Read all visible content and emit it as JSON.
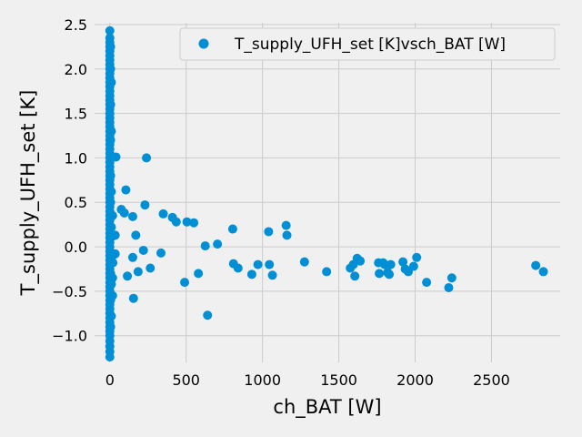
{
  "chart_data": {
    "type": "scatter",
    "title": "",
    "xlabel": "ch_BAT [W]",
    "ylabel": "T_supply_UFH_set [K]",
    "xlim": [
      -100,
      2950
    ],
    "ylim": [
      -1.3,
      2.52
    ],
    "xticks": [
      0,
      500,
      1000,
      1500,
      2000,
      2500
    ],
    "yticks": [
      -1.0,
      -0.5,
      0.0,
      0.5,
      1.0,
      1.5,
      2.0,
      2.5
    ],
    "xtick_labels": [
      "0",
      "500",
      "1000",
      "1500",
      "2000",
      "2500"
    ],
    "ytick_labels": [
      "−1.0",
      "−0.5",
      "0.0",
      "0.5",
      "1.0",
      "1.5",
      "2.0",
      "2.5"
    ],
    "grid": true,
    "legend_position": "top-right",
    "series": [
      {
        "name": "T_supply_UFH_set [K]vsch_BAT [W]",
        "color": "#008fd5",
        "points": [
          [
            0,
            -1.24
          ],
          [
            0,
            -1.18
          ],
          [
            0,
            -1.12
          ],
          [
            0,
            -1.06
          ],
          [
            0,
            -1.0
          ],
          [
            0,
            -0.95
          ],
          [
            0,
            -0.9
          ],
          [
            0,
            -0.85
          ],
          [
            0,
            -0.8
          ],
          [
            0,
            -0.75
          ],
          [
            0,
            -0.7
          ],
          [
            0,
            -0.65
          ],
          [
            0,
            -0.6
          ],
          [
            0,
            -0.55
          ],
          [
            0,
            -0.5
          ],
          [
            0,
            -0.45
          ],
          [
            0,
            -0.4
          ],
          [
            0,
            -0.35
          ],
          [
            0,
            -0.3
          ],
          [
            0,
            -0.25
          ],
          [
            0,
            -0.2
          ],
          [
            0,
            -0.15
          ],
          [
            0,
            -0.1
          ],
          [
            0,
            -0.05
          ],
          [
            0,
            0.0
          ],
          [
            0,
            0.05
          ],
          [
            0,
            0.1
          ],
          [
            0,
            0.15
          ],
          [
            0,
            0.2
          ],
          [
            0,
            0.25
          ],
          [
            0,
            0.3
          ],
          [
            0,
            0.35
          ],
          [
            0,
            0.4
          ],
          [
            0,
            0.45
          ],
          [
            0,
            0.5
          ],
          [
            0,
            0.55
          ],
          [
            0,
            0.6
          ],
          [
            0,
            0.65
          ],
          [
            0,
            0.7
          ],
          [
            0,
            0.75
          ],
          [
            0,
            0.8
          ],
          [
            0,
            0.85
          ],
          [
            0,
            0.9
          ],
          [
            0,
            0.95
          ],
          [
            0,
            1.0
          ],
          [
            0,
            1.05
          ],
          [
            0,
            1.1
          ],
          [
            0,
            1.15
          ],
          [
            0,
            1.2
          ],
          [
            0,
            1.25
          ],
          [
            0,
            1.3
          ],
          [
            0,
            1.35
          ],
          [
            0,
            1.4
          ],
          [
            0,
            1.45
          ],
          [
            0,
            1.5
          ],
          [
            0,
            1.55
          ],
          [
            0,
            1.6
          ],
          [
            0,
            1.65
          ],
          [
            0,
            1.7
          ],
          [
            0,
            1.75
          ],
          [
            0,
            1.8
          ],
          [
            0,
            1.85
          ],
          [
            0,
            1.9
          ],
          [
            0,
            1.95
          ],
          [
            0,
            2.0
          ],
          [
            0,
            2.05
          ],
          [
            0,
            2.1
          ],
          [
            0,
            2.15
          ],
          [
            0,
            2.2
          ],
          [
            0,
            2.25
          ],
          [
            0,
            2.3
          ],
          [
            0,
            2.35
          ],
          [
            0,
            2.43
          ],
          [
            5,
            -0.9
          ],
          [
            5,
            -0.6
          ],
          [
            5,
            -0.3
          ],
          [
            5,
            0.1
          ],
          [
            5,
            0.5
          ],
          [
            5,
            0.8
          ],
          [
            5,
            1.2
          ],
          [
            5,
            1.6
          ],
          [
            5,
            2.0
          ],
          [
            5,
            2.25
          ],
          [
            10,
            -0.78
          ],
          [
            10,
            -0.42
          ],
          [
            10,
            0.22
          ],
          [
            10,
            0.62
          ],
          [
            10,
            1.3
          ],
          [
            10,
            1.85
          ],
          [
            18,
            -0.55
          ],
          [
            18,
            -0.35
          ],
          [
            18,
            -0.1
          ],
          [
            18,
            0.12
          ],
          [
            18,
            0.35
          ],
          [
            20,
            -0.18
          ],
          [
            35,
            -0.08
          ],
          [
            35,
            0.13
          ],
          [
            40,
            1.01
          ],
          [
            75,
            0.42
          ],
          [
            95,
            0.38
          ],
          [
            105,
            0.64
          ],
          [
            115,
            -0.33
          ],
          [
            150,
            -0.12
          ],
          [
            150,
            0.34
          ],
          [
            155,
            -0.58
          ],
          [
            170,
            0.13
          ],
          [
            185,
            -0.28
          ],
          [
            220,
            -0.04
          ],
          [
            230,
            0.47
          ],
          [
            240,
            1.0
          ],
          [
            265,
            -0.24
          ],
          [
            335,
            -0.07
          ],
          [
            350,
            0.37
          ],
          [
            410,
            0.33
          ],
          [
            435,
            0.28
          ],
          [
            490,
            -0.4
          ],
          [
            505,
            0.28
          ],
          [
            550,
            0.27
          ],
          [
            580,
            -0.3
          ],
          [
            625,
            0.01
          ],
          [
            640,
            -0.77
          ],
          [
            705,
            0.03
          ],
          [
            805,
            0.2
          ],
          [
            810,
            -0.19
          ],
          [
            840,
            -0.24
          ],
          [
            930,
            -0.31
          ],
          [
            970,
            -0.2
          ],
          [
            1040,
            0.17
          ],
          [
            1045,
            -0.2
          ],
          [
            1065,
            -0.32
          ],
          [
            1155,
            0.24
          ],
          [
            1160,
            0.13
          ],
          [
            1275,
            -0.17
          ],
          [
            1420,
            -0.28
          ],
          [
            1575,
            -0.24
          ],
          [
            1595,
            -0.2
          ],
          [
            1605,
            -0.33
          ],
          [
            1620,
            -0.13
          ],
          [
            1640,
            -0.16
          ],
          [
            1760,
            -0.18
          ],
          [
            1765,
            -0.3
          ],
          [
            1790,
            -0.18
          ],
          [
            1800,
            -0.2
          ],
          [
            1820,
            -0.29
          ],
          [
            1830,
            -0.31
          ],
          [
            1840,
            -0.2
          ],
          [
            1920,
            -0.17
          ],
          [
            1935,
            -0.25
          ],
          [
            1955,
            -0.28
          ],
          [
            1990,
            -0.22
          ],
          [
            2010,
            -0.12
          ],
          [
            2075,
            -0.4
          ],
          [
            2220,
            -0.46
          ],
          [
            2240,
            -0.35
          ],
          [
            2790,
            -0.21
          ],
          [
            2840,
            -0.28
          ]
        ]
      }
    ]
  }
}
